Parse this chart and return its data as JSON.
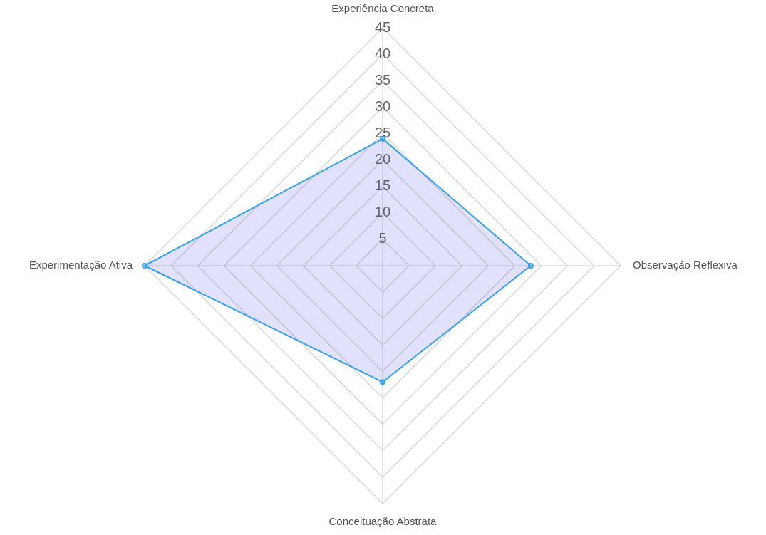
{
  "chart_data": {
    "type": "radar",
    "categories": [
      "Experiência Concreta",
      "Observação Reflexiva",
      "Conceituação Abstrata",
      "Experimentação Ativa"
    ],
    "series": [
      {
        "color": "#36a2eb",
        "values": [
          24,
          28,
          22,
          45
        ]
      }
    ],
    "ylim": [
      0,
      45
    ],
    "yticks": [
      5,
      10,
      15,
      20,
      25,
      30,
      35,
      40,
      45
    ],
    "grid": true,
    "marker": "circle",
    "legend": false
  }
}
